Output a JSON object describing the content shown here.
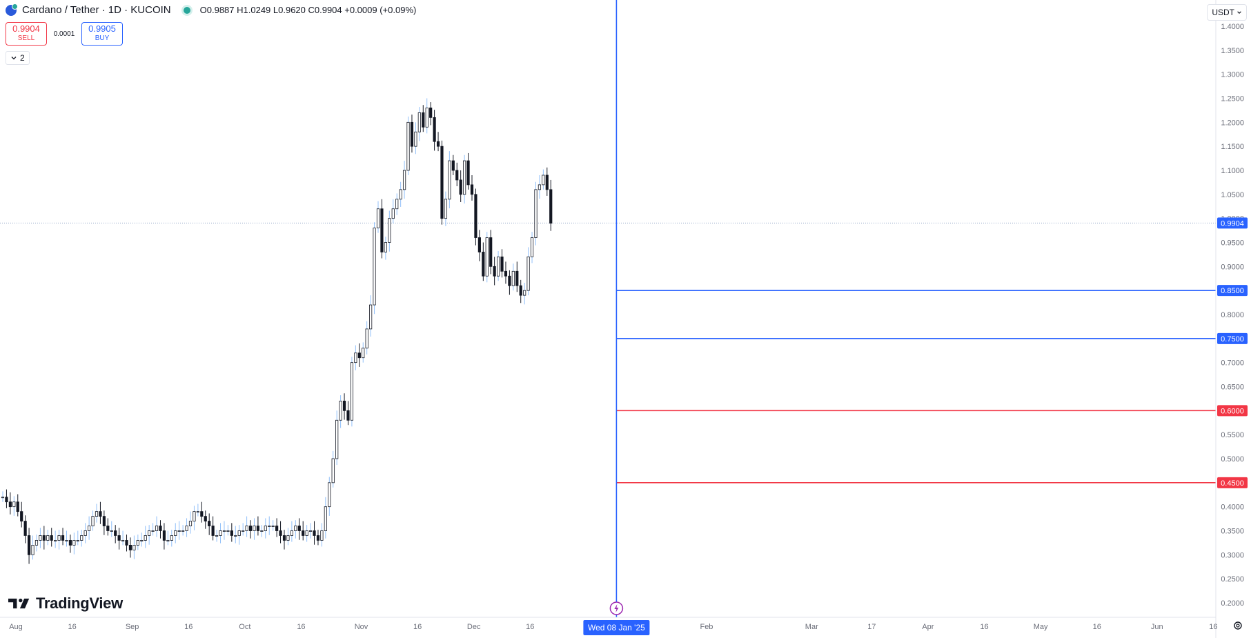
{
  "header": {
    "symbol": "Cardano / Tether · 1D · KUCOIN",
    "ohlc": "O0.9887 H1.0249 L0.9620 C0.9904 +0.0009 (+0.09%)"
  },
  "trade": {
    "sell_price": "0.9904",
    "sell_label": "SELL",
    "spread": "0.0001",
    "buy_price": "0.9905",
    "buy_label": "BUY"
  },
  "indicators_toggle": "2",
  "currency_button": "USDT",
  "brand": "TradingView",
  "icons": {
    "symbol_logo": "cardano-logo-icon",
    "status": "market-open-dot-icon",
    "chevron": "chevron-down-icon",
    "settings": "gear-icon",
    "alert": "lightning-icon"
  },
  "colors": {
    "blue": "#2962ff",
    "red": "#f23645",
    "candle": "#131722",
    "wick_up": "#90bff9"
  },
  "chart_data": {
    "type": "candlestick",
    "y_axis": {
      "min": 0.2,
      "max": 1.4,
      "step": 0.05,
      "tick_labels": [
        "1.4000",
        "1.3500",
        "1.3000",
        "1.2500",
        "1.2000",
        "1.1500",
        "1.1000",
        "1.0500",
        "1.0000",
        "0.9500",
        "0.9000",
        "0.8500",
        "0.8000",
        "0.7500",
        "0.7000",
        "0.6500",
        "0.6000",
        "0.5500",
        "0.5000",
        "0.4500",
        "0.4000",
        "0.3500",
        "0.3000",
        "0.2500",
        "0.2000"
      ]
    },
    "x_axis": {
      "start_date": "2024-08-01",
      "end_date": "2025-06-22",
      "ticks": [
        {
          "date": "2024-08-01",
          "label": "Aug"
        },
        {
          "date": "2024-08-16",
          "label": "16"
        },
        {
          "date": "2024-09-01",
          "label": "Sep"
        },
        {
          "date": "2024-09-16",
          "label": "16"
        },
        {
          "date": "2024-10-01",
          "label": "Oct"
        },
        {
          "date": "2024-10-16",
          "label": "16"
        },
        {
          "date": "2024-11-01",
          "label": "Nov"
        },
        {
          "date": "2024-11-16",
          "label": "16"
        },
        {
          "date": "2024-12-01",
          "label": "Dec"
        },
        {
          "date": "2024-12-16",
          "label": "16"
        },
        {
          "date": "2025-02-01",
          "label": "Feb"
        },
        {
          "date": "2025-03-01",
          "label": "Mar"
        },
        {
          "date": "2025-03-17",
          "label": "17"
        },
        {
          "date": "2025-04-01",
          "label": "Apr"
        },
        {
          "date": "2025-04-16",
          "label": "16"
        },
        {
          "date": "2025-05-01",
          "label": "May"
        },
        {
          "date": "2025-05-16",
          "label": "16"
        },
        {
          "date": "2025-06-01",
          "label": "Jun"
        },
        {
          "date": "2025-06-16",
          "label": "16"
        }
      ],
      "crosshair_label": "Wed 08 Jan '25",
      "crosshair_date": "2025-01-08"
    },
    "current_price": {
      "value": 0.9904,
      "label": "0.9904"
    },
    "horizontal_lines": [
      {
        "value": 0.85,
        "label": "0.8500",
        "color": "#2962ff"
      },
      {
        "value": 0.75,
        "label": "0.7500",
        "color": "#2962ff"
      },
      {
        "value": 0.6,
        "label": "0.6000",
        "color": "#f23645"
      },
      {
        "value": 0.45,
        "label": "0.4500",
        "color": "#f23645"
      }
    ],
    "closes": [
      0.42,
      0.41,
      0.4,
      0.41,
      0.39,
      0.37,
      0.34,
      0.3,
      0.32,
      0.33,
      0.34,
      0.33,
      0.34,
      0.33,
      0.33,
      0.34,
      0.33,
      0.33,
      0.32,
      0.33,
      0.33,
      0.34,
      0.35,
      0.36,
      0.38,
      0.39,
      0.38,
      0.36,
      0.35,
      0.35,
      0.34,
      0.33,
      0.33,
      0.32,
      0.31,
      0.32,
      0.33,
      0.33,
      0.34,
      0.35,
      0.35,
      0.36,
      0.35,
      0.33,
      0.33,
      0.34,
      0.35,
      0.35,
      0.35,
      0.36,
      0.37,
      0.39,
      0.39,
      0.38,
      0.37,
      0.36,
      0.34,
      0.34,
      0.35,
      0.35,
      0.35,
      0.34,
      0.34,
      0.35,
      0.35,
      0.36,
      0.35,
      0.36,
      0.35,
      0.35,
      0.36,
      0.36,
      0.36,
      0.35,
      0.34,
      0.33,
      0.34,
      0.35,
      0.36,
      0.35,
      0.34,
      0.35,
      0.35,
      0.34,
      0.33,
      0.35,
      0.4,
      0.45,
      0.5,
      0.58,
      0.62,
      0.6,
      0.58,
      0.7,
      0.72,
      0.71,
      0.73,
      0.77,
      0.82,
      0.98,
      1.02,
      0.93,
      0.95,
      1.0,
      1.02,
      1.04,
      1.06,
      1.1,
      1.2,
      1.15,
      1.18,
      1.22,
      1.19,
      1.23,
      1.21,
      1.16,
      1.15,
      1.0,
      1.04,
      1.12,
      1.1,
      1.08,
      1.05,
      1.12,
      1.07,
      1.05,
      0.96,
      0.93,
      0.88,
      0.96,
      0.9,
      0.88,
      0.92,
      0.89,
      0.88,
      0.86,
      0.89,
      0.86,
      0.84,
      0.85,
      0.92,
      0.96,
      1.06,
      1.07,
      1.09,
      1.06,
      0.99
    ]
  }
}
